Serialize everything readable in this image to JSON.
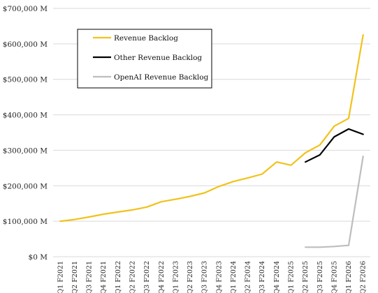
{
  "chart_data": {
    "type": "line",
    "title": "",
    "xlabel": "",
    "ylabel": "",
    "ylim": [
      0,
      700000
    ],
    "yticks": [
      0,
      100000,
      200000,
      300000,
      400000,
      500000,
      600000,
      700000
    ],
    "ytick_labels": [
      "$0 M",
      "$100,000 M",
      "$200,000 M",
      "$300,000 M",
      "$400,000 M",
      "$500,000 M",
      "$600,000 M",
      "$700,000 M"
    ],
    "grid": true,
    "legend_position": "top-left",
    "categories": [
      "Q1 F2021",
      "Q2 F2021",
      "Q3 F2021",
      "Q4 F2021",
      "Q1 F2022",
      "Q2 F2022",
      "Q3 F2022",
      "Q4 F2022",
      "Q1 F2023",
      "Q2 F2023",
      "Q3 F2023",
      "Q4 F2023",
      "Q1 F2024",
      "Q2 F2024",
      "Q3 F2024",
      "Q4 F2024",
      "Q1 F2025",
      "Q2 F2025",
      "Q3 F2025",
      "Q4 F2025",
      "Q1 F2026",
      "Q2 F2026"
    ],
    "series": [
      {
        "name": "Revenue Backlog",
        "color": "#F2C21A",
        "values": [
          100000,
          105000,
          112000,
          120000,
          126000,
          132000,
          140000,
          155000,
          162000,
          170000,
          180000,
          198000,
          212000,
          222000,
          233000,
          267000,
          258000,
          293000,
          315000,
          368000,
          390000,
          625000
        ]
      },
      {
        "name": "Other Revenue Backlog",
        "color": "#000000",
        "values": [
          null,
          null,
          null,
          null,
          null,
          null,
          null,
          null,
          null,
          null,
          null,
          null,
          null,
          null,
          null,
          null,
          null,
          267000,
          287000,
          338000,
          360000,
          345000
        ]
      },
      {
        "name": "OpenAI Revenue Backlog",
        "color": "#BDBDBD",
        "values": [
          null,
          null,
          null,
          null,
          null,
          null,
          null,
          null,
          null,
          null,
          null,
          null,
          null,
          null,
          null,
          null,
          null,
          27000,
          27000,
          29000,
          32000,
          283000
        ]
      }
    ]
  }
}
